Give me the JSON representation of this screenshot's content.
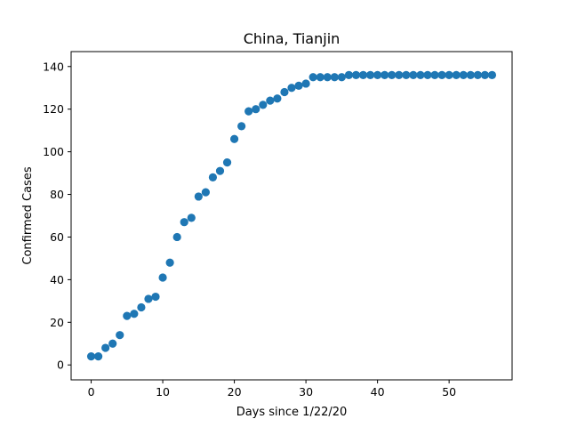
{
  "chart_data": {
    "type": "scatter",
    "title": "China, Tianjin",
    "xlabel": "Days since 1/22/20",
    "ylabel": "Confirmed Cases",
    "xlim": [
      -2.8,
      58.8
    ],
    "ylim": [
      -7,
      147
    ],
    "xticks": [
      0,
      10,
      20,
      30,
      40,
      50
    ],
    "yticks": [
      0,
      20,
      40,
      60,
      80,
      100,
      120,
      140
    ],
    "grid": false,
    "legend": "none",
    "marker_color": "#1f77b4",
    "x": [
      0,
      1,
      2,
      3,
      4,
      5,
      6,
      7,
      8,
      9,
      10,
      11,
      12,
      13,
      14,
      15,
      16,
      17,
      18,
      19,
      20,
      21,
      22,
      23,
      24,
      25,
      26,
      27,
      28,
      29,
      30,
      31,
      32,
      33,
      34,
      35,
      36,
      37,
      38,
      39,
      40,
      41,
      42,
      43,
      44,
      45,
      46,
      47,
      48,
      49,
      50,
      51,
      52,
      53,
      54,
      55,
      56
    ],
    "y": [
      4,
      4,
      8,
      10,
      14,
      23,
      24,
      27,
      31,
      32,
      41,
      48,
      60,
      67,
      69,
      79,
      81,
      88,
      91,
      95,
      106,
      112,
      119,
      120,
      122,
      124,
      125,
      128,
      130,
      131,
      132,
      135,
      135,
      135,
      135,
      135,
      136,
      136,
      136,
      136,
      136,
      136,
      136,
      136,
      136,
      136,
      136,
      136,
      136,
      136,
      136,
      136,
      136,
      136,
      136,
      136,
      136
    ]
  }
}
